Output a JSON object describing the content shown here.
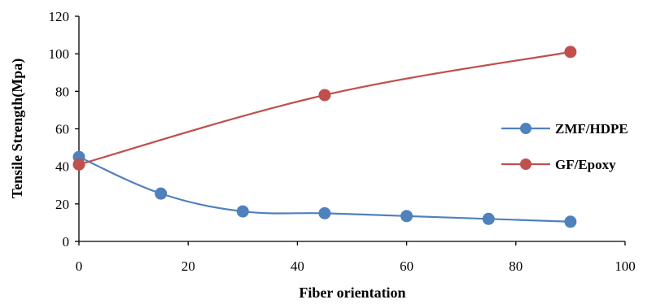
{
  "chart_data": {
    "type": "line",
    "title": "",
    "xlabel": "Fiber orientation",
    "ylabel": "Tensile Strength(Mpa)",
    "xlim": [
      0,
      100
    ],
    "ylim": [
      0,
      120
    ],
    "xticks": [
      "0",
      "20",
      "40",
      "60",
      "80",
      "100"
    ],
    "yticks": [
      "0",
      "20",
      "40",
      "60",
      "80",
      "100",
      "120"
    ],
    "grid": false,
    "legend_position": "right",
    "series": [
      {
        "name": "ZMF/HDPE",
        "color": "#4f81bd",
        "x": [
          0,
          15,
          30,
          45,
          60,
          75,
          90
        ],
        "y": [
          45,
          25.5,
          16,
          15,
          13.5,
          12,
          10.5
        ]
      },
      {
        "name": "GF/Epoxy",
        "color": "#c0504d",
        "x": [
          0,
          45,
          90
        ],
        "y": [
          41,
          78,
          101
        ]
      }
    ]
  }
}
